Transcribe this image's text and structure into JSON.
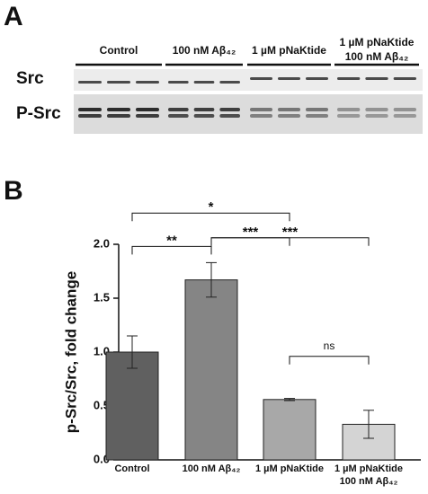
{
  "panel_a": {
    "letter": "A",
    "lanes": [
      [
        "Control"
      ],
      [
        "100 nM Aβ₄₂"
      ],
      [
        "1 µM pNaKtide"
      ],
      [
        "1 µM pNaKtide",
        "100 nM Aβ₄₂"
      ]
    ],
    "rows": [
      "Src",
      "P-Src"
    ]
  },
  "chart_data": {
    "type": "bar",
    "letter": "B",
    "ylabel": "p-Src/Src, fold change",
    "categories": [
      [
        "Control"
      ],
      [
        "100 nM Aβ₄₂"
      ],
      [
        "1 µM pNaKtide"
      ],
      [
        "1 µM pNaKtide",
        "100 nM Aβ₄₂"
      ]
    ],
    "values": [
      1.0,
      1.67,
      0.56,
      0.33
    ],
    "errors": [
      0.15,
      0.16,
      0.01,
      0.13
    ],
    "colors": [
      "#606060",
      "#858585",
      "#a8a8a8",
      "#d4d4d4"
    ],
    "ylim": [
      0,
      2.0
    ],
    "yticks": [
      {
        "value": 0,
        "label": "0.0"
      },
      {
        "value": 0.5,
        "label": "0.5"
      },
      {
        "value": 1,
        "label": "1.0"
      },
      {
        "value": 1.5,
        "label": "1.5"
      },
      {
        "value": 2,
        "label": "2.0"
      }
    ],
    "annotations": [
      {
        "from": 0,
        "to": 2,
        "y": 2.29,
        "label": "*"
      },
      {
        "from": 0,
        "to": 1,
        "y": 1.98,
        "label": "**"
      },
      {
        "from": 1,
        "to": 2,
        "y": 2.06,
        "label": "***"
      },
      {
        "from": 1,
        "to": 3,
        "y": 2.06,
        "label": "***"
      },
      {
        "from": 2,
        "to": 3,
        "y": 0.96,
        "label": "ns"
      }
    ]
  }
}
